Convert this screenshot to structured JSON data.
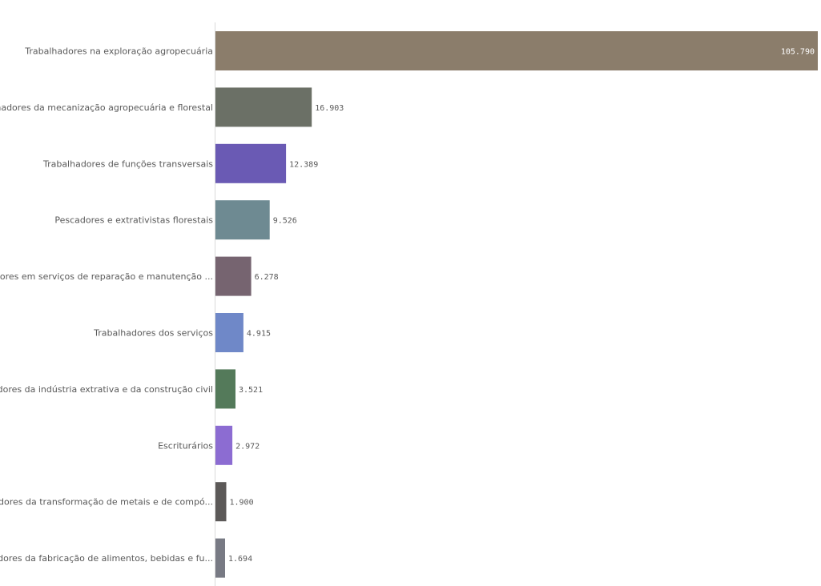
{
  "chart_data": {
    "type": "bar",
    "orientation": "horizontal",
    "categories": [
      "Trabalhadores na exploração agropecuária",
      "Trabalhadores da mecanização agropecuária e florestal",
      "Trabalhadores de funções transversais",
      "Pescadores e extrativistas florestais",
      "Trabalhadores em serviços de reparação e manutenção ...",
      "Trabalhadores dos serviços",
      "Trabalhadores da indústria extrativa e da construção civil",
      "Escriturários",
      "Trabalhadores da transformação de metais e de compó...",
      "Trabalhadores da fabricação de alimentos, bebidas e fu..."
    ],
    "values": [
      105790,
      16903,
      12389,
      9526,
      6278,
      4915,
      3521,
      2972,
      1900,
      1694
    ],
    "value_labels": [
      "105.790",
      "16.903",
      "12.389",
      "9.526",
      "6.278",
      "4.915",
      "3.521",
      "2.972",
      "1.900",
      "1.694"
    ],
    "colors": [
      "#8b7d6b",
      "#6b7066",
      "#6a5ab4",
      "#6e8a92",
      "#766470",
      "#6f88c8",
      "#547a5a",
      "#8c6cd2",
      "#5c5958",
      "#787a84"
    ],
    "title": "",
    "xlabel": "",
    "ylabel": "",
    "xlim": [
      0,
      105790
    ],
    "grid": false,
    "legend": "none"
  }
}
